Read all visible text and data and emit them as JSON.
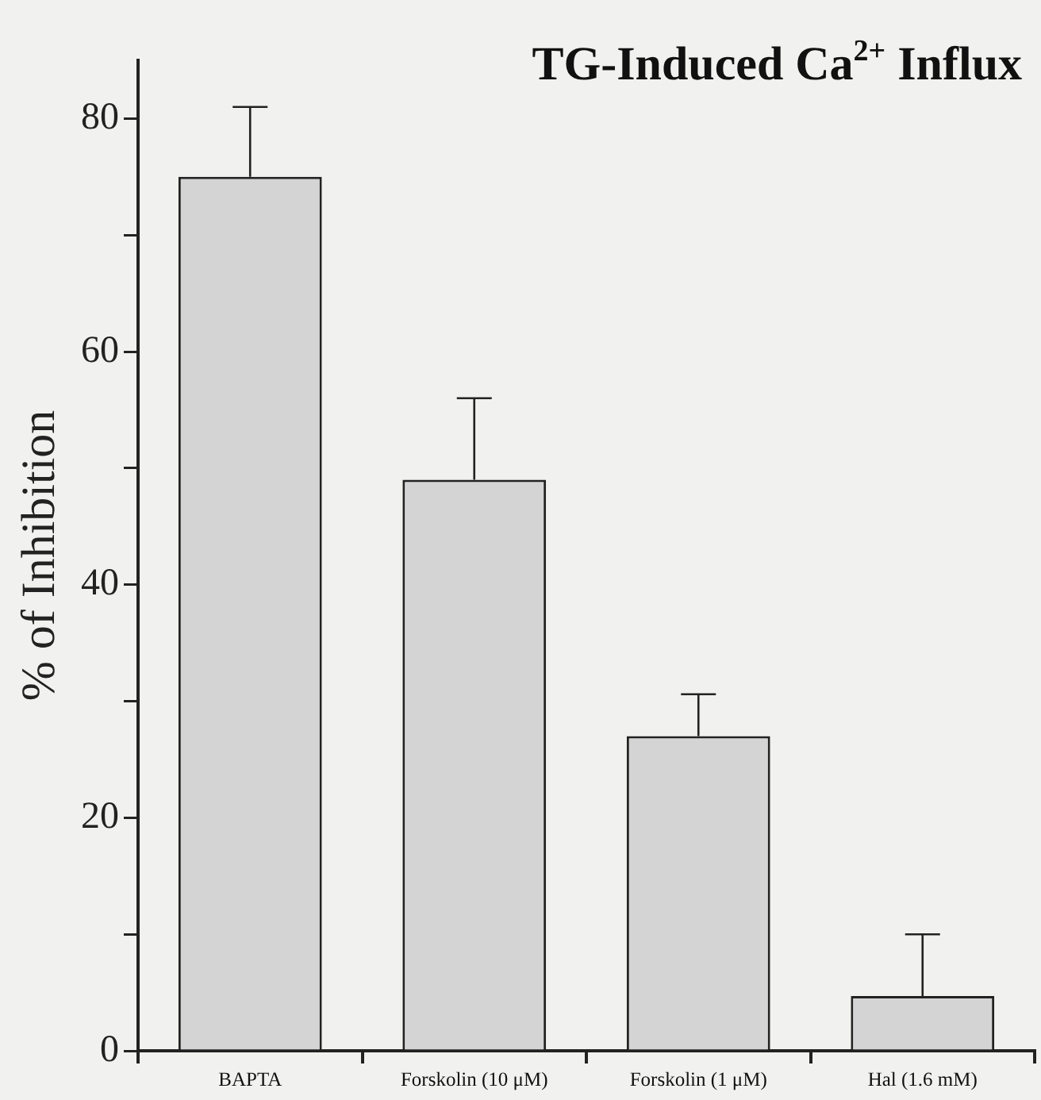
{
  "chart_data": {
    "type": "bar",
    "title": "TG-Induced Ca$^{2+}$ Influx",
    "ylabel": "% of Inhibition",
    "categories": [
      "BAPTA",
      "Forskolin (10 μM)",
      "Forskolin (1 μM)",
      "Hal (1.6 mM)"
    ],
    "values": [
      75,
      49,
      27,
      4.7
    ],
    "errors": [
      [
        75,
        81
      ],
      [
        49,
        56
      ],
      [
        27,
        30.6
      ],
      [
        4.7,
        10
      ]
    ],
    "color": "#d4d4d4",
    "ylim": [
      0,
      85
    ],
    "yticks": [
      0,
      {
        "value": 10,
        "label": null
      },
      20,
      {
        "value": 30,
        "label": null
      },
      40,
      {
        "value": 50,
        "label": null
      },
      60,
      {
        "value": 70,
        "label": null
      },
      80
    ],
    "grid": false,
    "legend": false
  }
}
